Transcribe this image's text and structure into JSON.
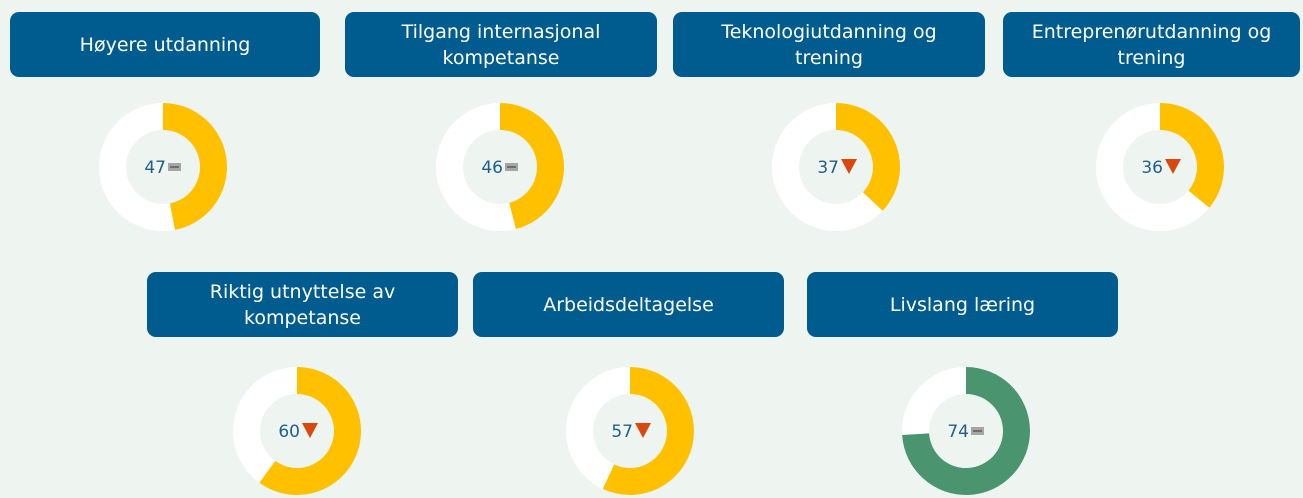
{
  "chart_data": [
    {
      "type": "donut",
      "title": "Høyere utdanning",
      "value": 47,
      "ylim": [
        0,
        100
      ],
      "color": "#FFC000",
      "trend": "flat"
    },
    {
      "type": "donut",
      "title": "Tilgang internasjonal kompetanse",
      "value": 46,
      "ylim": [
        0,
        100
      ],
      "color": "#FFC000",
      "trend": "flat"
    },
    {
      "type": "donut",
      "title": "Teknologiutdanning og trening",
      "value": 37,
      "ylim": [
        0,
        100
      ],
      "color": "#FFC000",
      "trend": "down"
    },
    {
      "type": "donut",
      "title": "Entreprenørutdanning og trening",
      "value": 36,
      "ylim": [
        0,
        100
      ],
      "color": "#FFC000",
      "trend": "down"
    },
    {
      "type": "donut",
      "title": "Riktig utnyttelse av kompetanse",
      "value": 60,
      "ylim": [
        0,
        100
      ],
      "color": "#FFC000",
      "trend": "down"
    },
    {
      "type": "donut",
      "title": "Arbeidsdeltagelse",
      "value": 57,
      "ylim": [
        0,
        100
      ],
      "color": "#FFC000",
      "trend": "down"
    },
    {
      "type": "donut",
      "title": "Livslang læring",
      "value": 74,
      "ylim": [
        0,
        100
      ],
      "color": "#4A9470",
      "trend": "flat"
    }
  ]
}
